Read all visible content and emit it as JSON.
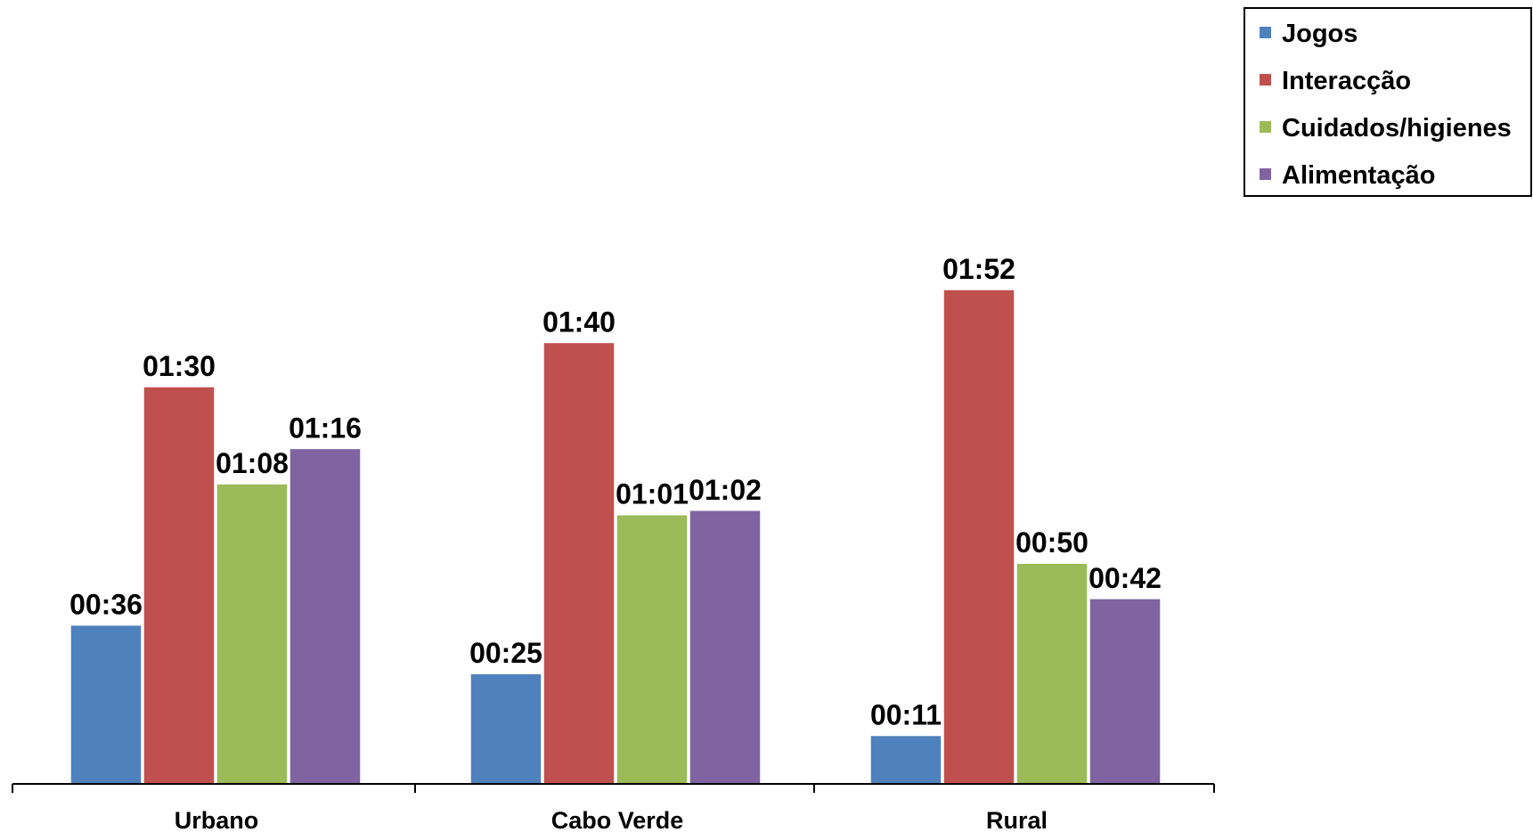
{
  "chart_data": {
    "type": "bar",
    "categories": [
      "Urbano",
      "Cabo Verde",
      "Rural"
    ],
    "series": [
      {
        "name": "Jogos",
        "color": "#4F81BD",
        "values": [
          36,
          25,
          11
        ],
        "labels": [
          "00:36",
          "00:25",
          "00:11"
        ]
      },
      {
        "name": "Interacção",
        "color": "#C0504D",
        "values": [
          90,
          100,
          112
        ],
        "labels": [
          "01:30",
          "01:40",
          "01:52"
        ]
      },
      {
        "name": "Cuidados/higienes",
        "color": "#9BBB59",
        "values": [
          68,
          61,
          50
        ],
        "labels": [
          "01:08",
          "01:01",
          "00:50"
        ]
      },
      {
        "name": "Alimentação",
        "color": "#8064A2",
        "values": [
          76,
          62,
          42
        ],
        "labels": [
          "01:16",
          "01:02",
          "00:42"
        ]
      }
    ],
    "value_unit": "minutes",
    "ylim": [
      0,
      112
    ],
    "grid": false,
    "legend_position": "top-right"
  }
}
